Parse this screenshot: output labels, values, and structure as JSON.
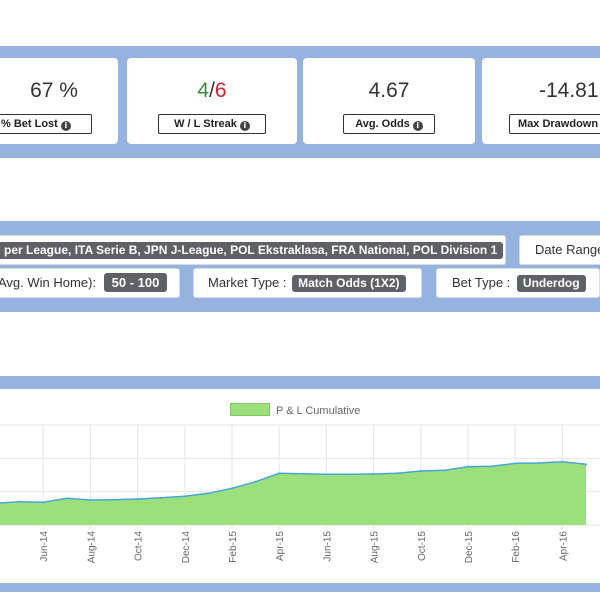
{
  "kpis": [
    {
      "value": "67 %",
      "label": "% Bet Lost"
    },
    {
      "value_win": "4",
      "value_sep": "/",
      "value_loss": "6",
      "label": "W / L Streak"
    },
    {
      "value": "4.67",
      "label": "Avg. Odds"
    },
    {
      "value": "-14.81",
      "label": "Max Drawdown"
    }
  ],
  "filters": {
    "leagues": "per League, ITA Serie B, JPN J-League, POL Ekstraklasa, FRA National, POL Division 1",
    "date_range_label": "Date Range",
    "avg_win_home_label": "Avg. Win Home):",
    "avg_win_home_value": "50 - 100",
    "market_type_label": "Market Type :",
    "market_type_value": "Match Odds (1X2)",
    "bet_type_label": "Bet Type :",
    "bet_type_value": "Underdog"
  },
  "chart_data": {
    "type": "area",
    "legend": "P & L Cumulative",
    "legend_position": "top",
    "grid": true,
    "fill_color": "#9be07a",
    "line_color": "#4aa6d6",
    "x_ticks": [
      "Jun-14",
      "Aug-14",
      "Oct-14",
      "Dec-14",
      "Feb-15",
      "Apr-15",
      "Jun-15",
      "Aug-15",
      "Oct-15",
      "Dec-15",
      "Feb-16",
      "Apr-16"
    ],
    "x": [
      "Apr-14",
      "May-14",
      "Jun-14",
      "Jul-14",
      "Aug-14",
      "Sep-14",
      "Oct-14",
      "Nov-14",
      "Dec-14",
      "Jan-15",
      "Feb-15",
      "Mar-15",
      "Apr-15",
      "May-15",
      "Jun-15",
      "Jul-15",
      "Aug-15",
      "Sep-15",
      "Oct-15",
      "Nov-15",
      "Dec-15",
      "Jan-16",
      "Feb-16",
      "Mar-16",
      "Apr-16",
      "May-16"
    ],
    "values": [
      1.5,
      2.0,
      1.8,
      3.0,
      2.5,
      2.6,
      2.8,
      3.2,
      3.6,
      4.5,
      6.0,
      8.0,
      10.5,
      10.4,
      10.2,
      10.2,
      10.3,
      10.5,
      11.2,
      11.4,
      12.5,
      12.6,
      13.5,
      13.6,
      14.0,
      13.2
    ],
    "ylim": [
      -5,
      25
    ]
  }
}
